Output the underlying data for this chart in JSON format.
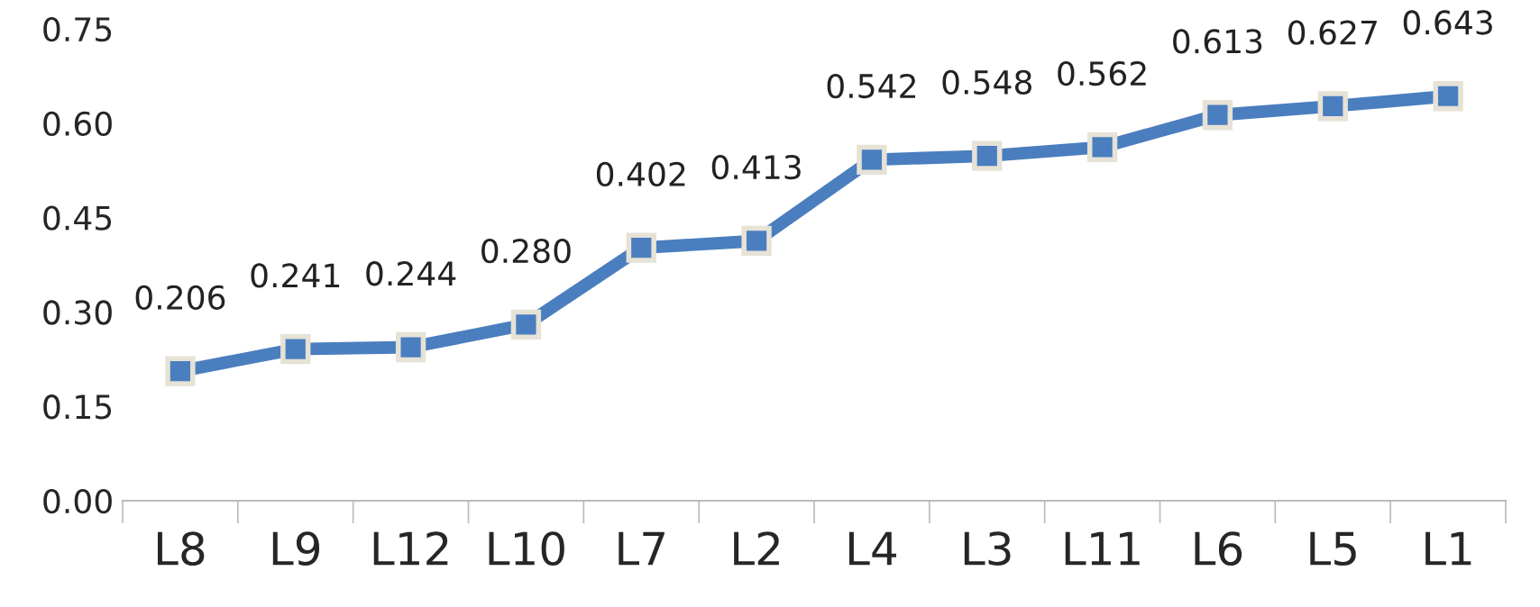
{
  "chart_data": {
    "type": "line",
    "categories": [
      "L8",
      "L9",
      "L12",
      "L10",
      "L7",
      "L2",
      "L4",
      "L3",
      "L11",
      "L6",
      "L5",
      "L1"
    ],
    "series": [
      {
        "color": "#4a7ebf",
        "values": [
          0.206,
          0.241,
          0.244,
          0.28,
          0.402,
          0.413,
          0.542,
          0.548,
          0.562,
          0.613,
          0.627,
          0.643
        ]
      }
    ],
    "ylim": [
      0,
      0.75
    ],
    "yticks": [
      {
        "value": 0,
        "label": "0.00"
      },
      {
        "value": 0.15,
        "label": "0.15"
      },
      {
        "value": 0.3,
        "label": "0.30"
      },
      {
        "value": 0.45,
        "label": "0.45"
      },
      {
        "value": 0.6,
        "label": "0.60"
      },
      {
        "value": 0.75,
        "label": "0.75"
      }
    ],
    "value_labels": [
      "0.206",
      "0.241",
      "0.244",
      "0.280",
      "0.402",
      "0.413",
      "0.542",
      "0.548",
      "0.562",
      "0.613",
      "0.627",
      "0.643"
    ],
    "grid": false,
    "legend": false,
    "marker": "square",
    "line_style": "solid"
  }
}
